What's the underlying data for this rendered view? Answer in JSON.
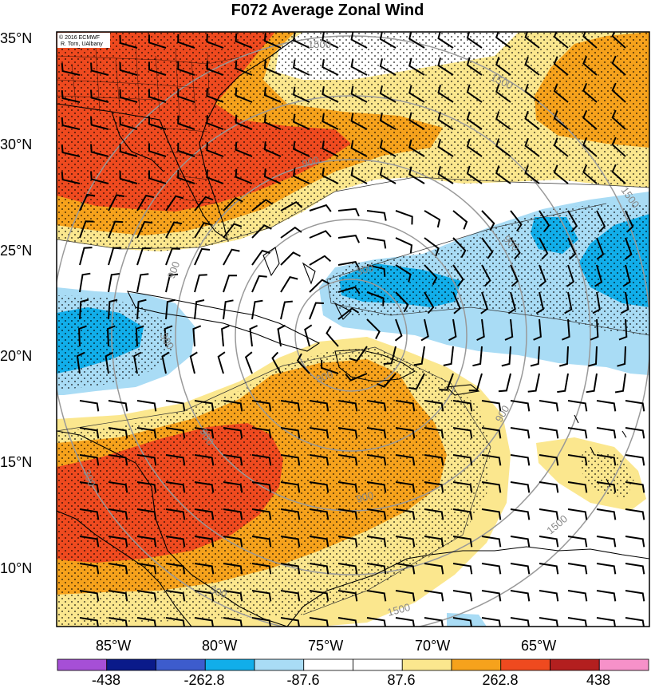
{
  "title": "F072 Average Zonal Wind",
  "credit_lines": [
    "© 2016 ECMWF",
    "R. Torn, UAlbany"
  ],
  "lat_labels": [
    "35°N",
    "30°N",
    "25°N",
    "20°N",
    "15°N",
    "10°N"
  ],
  "lon_labels": [
    "85°W",
    "80°W",
    "75°W",
    "70°W",
    "65°W"
  ],
  "contour_labels": [
    "1500",
    "1500",
    "1500",
    "1500",
    "1500",
    "900",
    "900",
    "900",
    "900",
    "900",
    "900",
    "300",
    "300",
    "300",
    "300",
    "300",
    "900",
    "1500"
  ],
  "colorbar": {
    "ticks": [
      "-438",
      "-262.8",
      "-87.6",
      "87.6",
      "262.8",
      "438"
    ],
    "colors": [
      "#a64fd6",
      "#0a1a8a",
      "#3d5ccd",
      "#11aeea",
      "#a9dcf5",
      "#ffffff",
      "#ffffff",
      "#fbe78e",
      "#f6a21c",
      "#ef4a1f",
      "#b31f1f",
      "#f691c9"
    ]
  },
  "palette": {
    "dark_red": "#b31f1f",
    "red": "#ef4a1f",
    "orange": "#f6a21c",
    "yellow": "#fbe78e",
    "light_blue": "#a9dcf5",
    "blue": "#11aeea"
  }
}
